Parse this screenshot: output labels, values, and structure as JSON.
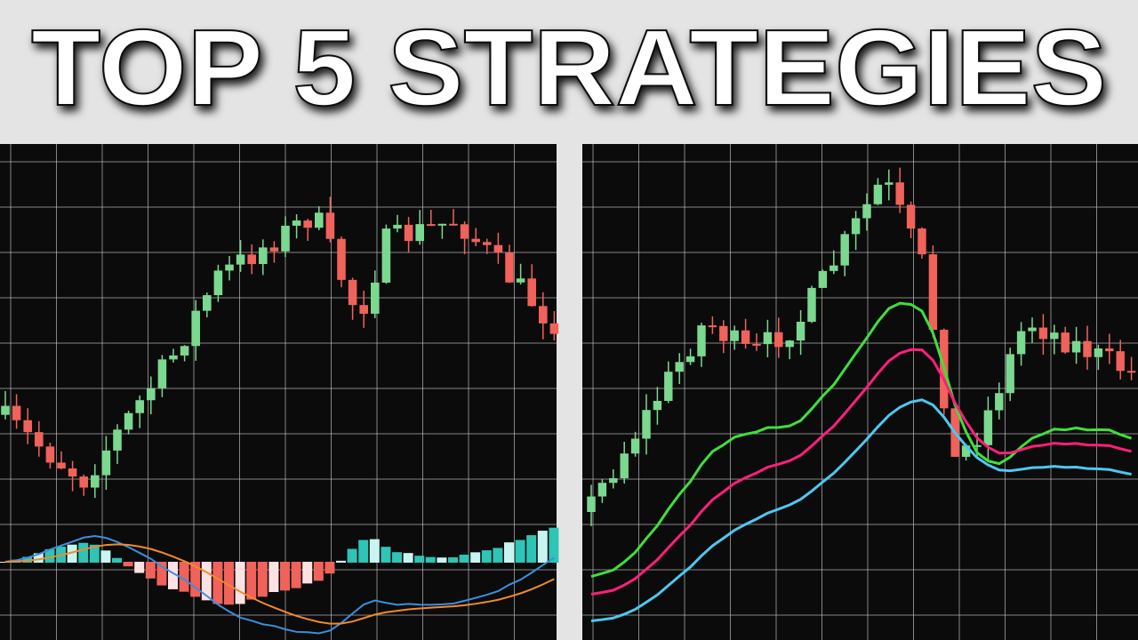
{
  "header": {
    "title": "TOP 5 STRATEGIES"
  }
}
